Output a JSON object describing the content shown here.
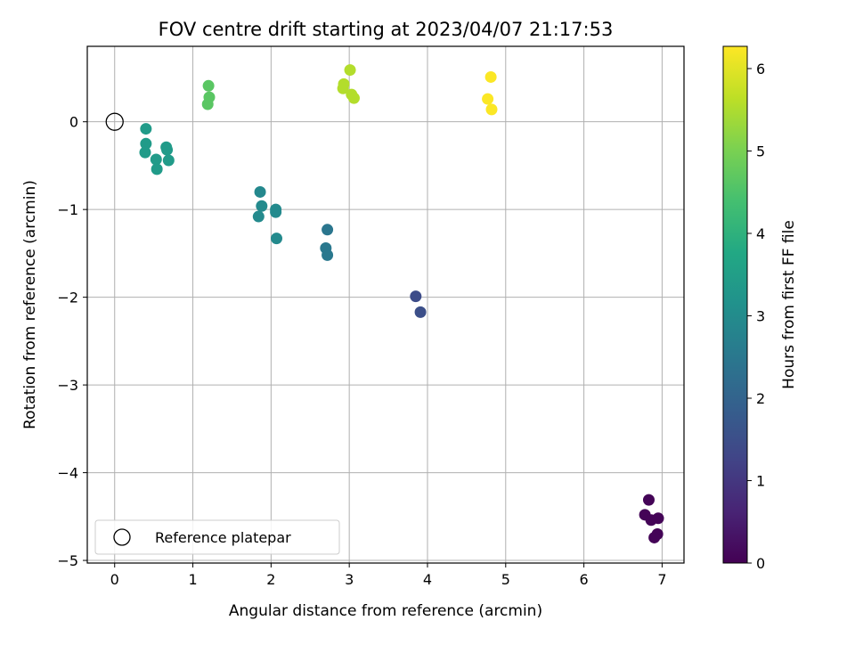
{
  "chart_data": {
    "type": "scatter",
    "title": "FOV centre drift starting at 2023/04/07 21:17:53",
    "xlabel": "Angular distance from reference (arcmin)",
    "ylabel": "Rotation from reference (arcmin)",
    "xlim": [
      -0.35,
      7.28
    ],
    "ylim": [
      -5.03,
      0.86
    ],
    "xticks": [
      0,
      1,
      2,
      3,
      4,
      5,
      6,
      7
    ],
    "yticks": [
      0,
      -1,
      -2,
      -3,
      -4,
      -5
    ],
    "grid": true,
    "legend": {
      "position": "lower-left",
      "entries": [
        "Reference platepar"
      ]
    },
    "reference_point": {
      "x": 0,
      "y": 0,
      "label": "Reference platepar"
    },
    "colorbar": {
      "label": "Hours from first FF file",
      "range": [
        0,
        6.27
      ],
      "ticks": [
        0,
        1,
        2,
        3,
        4,
        5,
        6
      ],
      "colormap": "viridis"
    },
    "points": [
      {
        "x": 6.83,
        "y": -4.31,
        "c": 0.05
      },
      {
        "x": 6.78,
        "y": -4.48,
        "c": 0.05
      },
      {
        "x": 6.86,
        "y": -4.54,
        "c": 0.05
      },
      {
        "x": 6.95,
        "y": -4.52,
        "c": 0.05
      },
      {
        "x": 6.94,
        "y": -4.7,
        "c": 0.05
      },
      {
        "x": 6.9,
        "y": -4.74,
        "c": 0.05
      },
      {
        "x": 3.85,
        "y": -1.99,
        "c": 1.45
      },
      {
        "x": 3.91,
        "y": -2.17,
        "c": 1.5
      },
      {
        "x": 2.72,
        "y": -1.23,
        "c": 2.45
      },
      {
        "x": 2.7,
        "y": -1.44,
        "c": 2.5
      },
      {
        "x": 2.72,
        "y": -1.52,
        "c": 2.52
      },
      {
        "x": 1.86,
        "y": -0.8,
        "c": 2.9
      },
      {
        "x": 1.88,
        "y": -0.96,
        "c": 2.95
      },
      {
        "x": 1.84,
        "y": -1.08,
        "c": 2.95
      },
      {
        "x": 2.06,
        "y": -1.0,
        "c": 2.95
      },
      {
        "x": 2.06,
        "y": -1.03,
        "c": 2.95
      },
      {
        "x": 2.07,
        "y": -1.33,
        "c": 2.95
      },
      {
        "x": 0.4,
        "y": -0.08,
        "c": 3.4
      },
      {
        "x": 0.4,
        "y": -0.25,
        "c": 3.4
      },
      {
        "x": 0.39,
        "y": -0.35,
        "c": 3.4
      },
      {
        "x": 0.53,
        "y": -0.43,
        "c": 3.4
      },
      {
        "x": 0.54,
        "y": -0.54,
        "c": 3.4
      },
      {
        "x": 0.66,
        "y": -0.29,
        "c": 3.4
      },
      {
        "x": 0.67,
        "y": -0.32,
        "c": 3.4
      },
      {
        "x": 0.69,
        "y": -0.44,
        "c": 3.4
      },
      {
        "x": 1.2,
        "y": 0.41,
        "c": 4.65
      },
      {
        "x": 1.21,
        "y": 0.28,
        "c": 4.65
      },
      {
        "x": 1.19,
        "y": 0.2,
        "c": 4.65
      },
      {
        "x": 3.01,
        "y": 0.59,
        "c": 5.55
      },
      {
        "x": 2.93,
        "y": 0.43,
        "c": 5.55
      },
      {
        "x": 2.92,
        "y": 0.38,
        "c": 5.55
      },
      {
        "x": 3.03,
        "y": 0.31,
        "c": 5.55
      },
      {
        "x": 3.06,
        "y": 0.27,
        "c": 5.55
      },
      {
        "x": 4.81,
        "y": 0.51,
        "c": 6.25
      },
      {
        "x": 4.77,
        "y": 0.26,
        "c": 6.25
      },
      {
        "x": 4.82,
        "y": 0.14,
        "c": 6.25
      }
    ]
  }
}
